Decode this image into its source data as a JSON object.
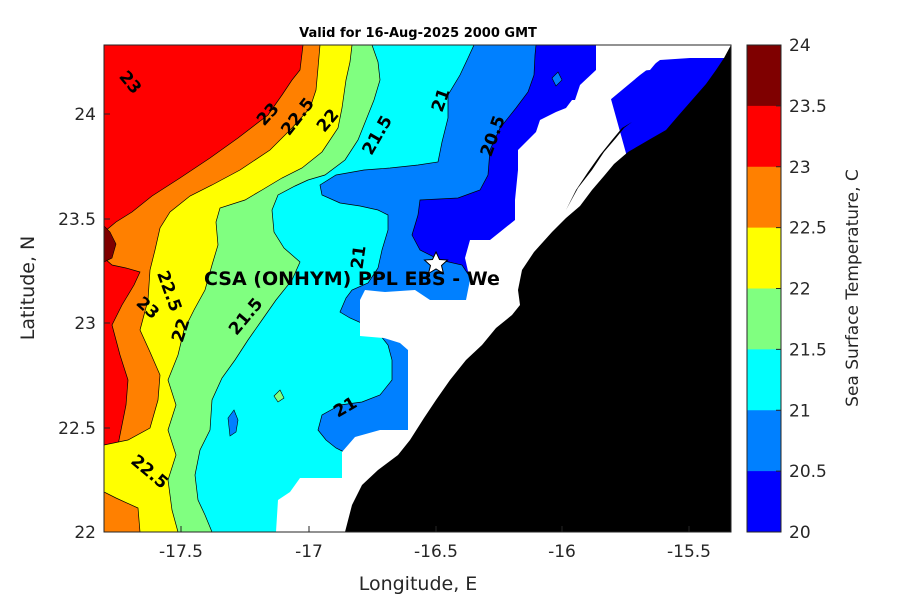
{
  "title": "Valid for 16-Aug-2025 2000 GMT",
  "xlabel": "Longitude, E",
  "ylabel": "Latitude, N",
  "x_ticks": [
    "-17.5",
    "-17",
    "-16.5",
    "-16",
    "-15.5"
  ],
  "y_ticks": [
    "24",
    "23.5",
    "23",
    "22.5",
    "22"
  ],
  "station_label": "CSA (ONHYM) PPL EBS  - We",
  "colorbar": {
    "label": "Sea Surface Temperature, C",
    "ticks": [
      "24",
      "23.5",
      "23",
      "22.5",
      "22",
      "21.5",
      "21",
      "20.5",
      "20"
    ],
    "colors": [
      "#7f0000",
      "#ff0000",
      "#ff8000",
      "#ffff00",
      "#80ff80",
      "#00ffff",
      "#0080ff",
      "#0000ff"
    ]
  },
  "contour_labels": [
    {
      "text": "23"
    },
    {
      "text": "23"
    },
    {
      "text": "22.5"
    },
    {
      "text": "22"
    },
    {
      "text": "21.5"
    },
    {
      "text": "21"
    },
    {
      "text": "20.5"
    },
    {
      "text": "21"
    },
    {
      "text": "22.5"
    },
    {
      "text": "23"
    },
    {
      "text": "22"
    },
    {
      "text": "21.5"
    },
    {
      "text": "21"
    },
    {
      "text": "22.5"
    }
  ],
  "chart_data": {
    "type": "heatmap",
    "title": "Valid for 16-Aug-2025 2000 GMT",
    "xlabel": "Longitude, E",
    "ylabel": "Latitude, N",
    "xlim": [
      -17.8,
      -15.35
    ],
    "ylim": [
      22,
      24.33
    ],
    "color_scale": {
      "min": 20,
      "max": 24,
      "step": 0.5,
      "label": "Sea Surface Temperature, C"
    },
    "station": {
      "name": "CSA (ONHYM) PPL EBS  - We",
      "lon": -16.48,
      "lat": 23.29
    },
    "land_color": "#000000",
    "no_data_color": "#ffffff"
  }
}
